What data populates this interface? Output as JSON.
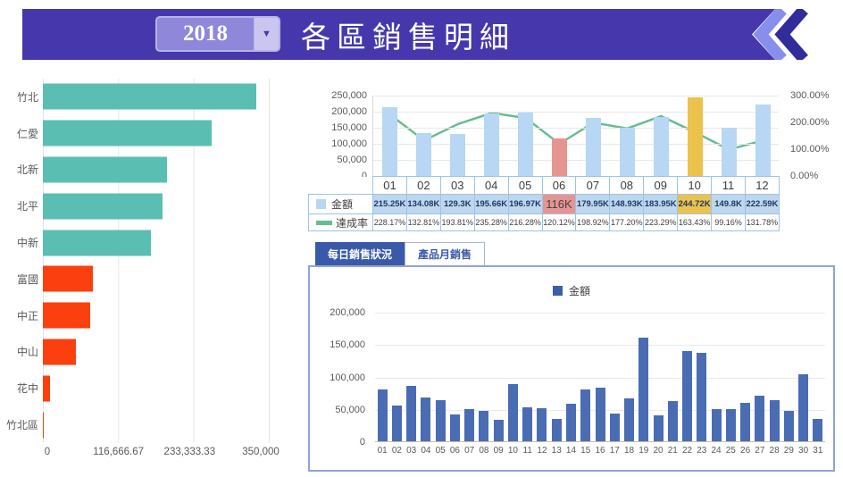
{
  "header": {
    "year": "2018",
    "title": "各區銷售明細",
    "banner_color": "#4638ac",
    "chevron_light": "#8690ec",
    "chevron_dark": "#312c9c"
  },
  "tabs": [
    {
      "label": "每日銷售狀況",
      "active": true
    },
    {
      "label": "產品月銷售",
      "active": false
    }
  ],
  "chart_data": [
    {
      "id": "region_sales",
      "type": "bar",
      "orientation": "horizontal",
      "categories": [
        "竹北",
        "仁愛",
        "北新",
        "北平",
        "中新",
        "富國",
        "中正",
        "中山",
        "花中",
        "竹北區"
      ],
      "values": [
        331000,
        262000,
        192000,
        185000,
        167000,
        77000,
        73000,
        51500,
        11400,
        2000
      ],
      "bar_colors": [
        "#5abfb2",
        "#5abfb2",
        "#5abfb2",
        "#5abfb2",
        "#5abfb2",
        "#fc3f0f",
        "#fc3f0f",
        "#fc3f0f",
        "#fc3f0f",
        "#fc3f0f"
      ],
      "xlim": [
        0,
        350000
      ],
      "x_ticks": [
        "0",
        "116,666.67",
        "233,333.33",
        "350,000"
      ],
      "grid": true
    },
    {
      "id": "monthly_amount_vs_rate",
      "type": "bar+line",
      "categories": [
        "01",
        "02",
        "03",
        "04",
        "05",
        "06",
        "07",
        "08",
        "09",
        "10",
        "11",
        "12"
      ],
      "series": [
        {
          "name": "金額",
          "type": "bar",
          "values_k": [
            215.25,
            134.08,
            129.3,
            195.66,
            196.97,
            116,
            179.95,
            148.93,
            183.95,
            244.72,
            149.8,
            222.59
          ],
          "labels": [
            "215.25K",
            "134.08K",
            "129.3K",
            "195.66K",
            "196.97K",
            "116K",
            "179.95K",
            "148.93K",
            "183.95K",
            "244.72K",
            "149.8K",
            "222.59K"
          ],
          "color_default": "#b7d7f4",
          "highlight_colors": {
            "5": "#e69492",
            "9": "#ebc24c"
          }
        },
        {
          "name": "達成率",
          "type": "line",
          "values_pct": [
            228.17,
            132.81,
            193.81,
            235.28,
            216.28,
            120.12,
            198.92,
            177.2,
            223.29,
            163.43,
            99.16,
            131.78
          ],
          "labels": [
            "228.17%",
            "132.81%",
            "193.81%",
            "235.28%",
            "216.28%",
            "120.12%",
            "198.92%",
            "177.20%",
            "223.29%",
            "163.43%",
            "99.16%",
            "131.78%"
          ],
          "color": "#67bd8f"
        }
      ],
      "left_axis": {
        "ticks": [
          "250,000",
          "200,000",
          "150,000",
          "100,000",
          "50,000",
          "0"
        ],
        "max": 250000
      },
      "right_axis": {
        "ticks": [
          "300.00%",
          "200.00%",
          "100.00%",
          "0.00%"
        ],
        "max": 300
      },
      "grid": true,
      "legend_position": "table-left"
    },
    {
      "id": "daily_sales",
      "type": "bar",
      "legend_label": "金額",
      "categories": [
        "01",
        "02",
        "03",
        "04",
        "05",
        "06",
        "07",
        "08",
        "09",
        "10",
        "11",
        "12",
        "13",
        "14",
        "15",
        "16",
        "17",
        "18",
        "19",
        "20",
        "21",
        "22",
        "23",
        "24",
        "25",
        "26",
        "27",
        "28",
        "29",
        "30",
        "31"
      ],
      "values": [
        80000,
        55000,
        85000,
        68000,
        64000,
        41000,
        50000,
        47000,
        33000,
        88000,
        52000,
        51000,
        34000,
        58000,
        80000,
        83000,
        43000,
        66000,
        160000,
        40000,
        62000,
        140000,
        136000,
        50000,
        50000,
        59000,
        71000,
        64000,
        47000,
        104000,
        35000
      ],
      "bar_color": "#4a6cb3",
      "y_ticks": [
        "200,000",
        "150,000",
        "100,000",
        "50,000",
        "0"
      ],
      "ylim": [
        0,
        200000
      ],
      "grid": true,
      "legend_position": "top-center"
    }
  ]
}
